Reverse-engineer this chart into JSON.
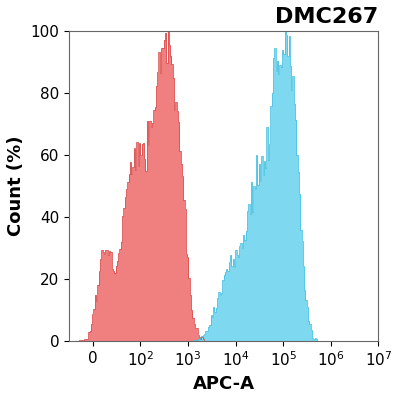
{
  "title": "DMC267",
  "xlabel": "APC-A",
  "ylabel": "Count (%)",
  "ylim": [
    0,
    100
  ],
  "yticks": [
    0,
    20,
    40,
    60,
    80,
    100
  ],
  "red_color": "#F08080",
  "red_edge_color": "#D94040",
  "blue_color": "#7DD8F0",
  "blue_edge_color": "#3BBDE0",
  "title_fontsize": 16,
  "label_fontsize": 13,
  "tick_fontsize": 11,
  "red_seed": 12345,
  "blue_seed": 67890
}
